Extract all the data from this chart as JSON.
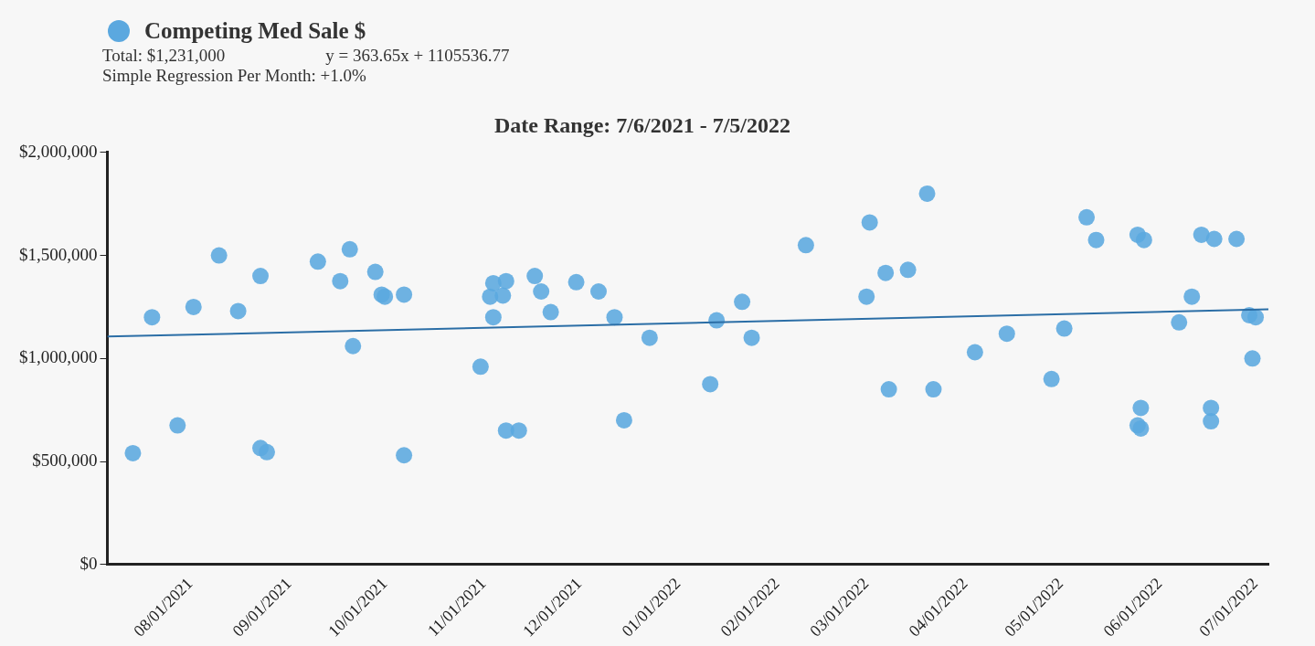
{
  "chart_data": {
    "type": "scatter",
    "title": "Date Range: 7/6/2021 - 7/5/2022",
    "legend": "top left",
    "grid": false,
    "annotations": [
      "Total: $1,231,000",
      "y = 363.65x + 1105536.77",
      "Simple Regression Per Month: +1.0%"
    ],
    "xlim": [
      "2021-07-06",
      "2022-07-05"
    ],
    "xticks": [
      {
        "value": "2021-08-01",
        "label": "08/01/2021"
      },
      {
        "value": "2021-09-01",
        "label": "09/01/2021"
      },
      {
        "value": "2021-10-01",
        "label": "10/01/2021"
      },
      {
        "value": "2021-11-01",
        "label": "11/01/2021"
      },
      {
        "value": "2021-12-01",
        "label": "12/01/2021"
      },
      {
        "value": "2022-01-01",
        "label": "01/01/2022"
      },
      {
        "value": "2022-02-01",
        "label": "02/01/2022"
      },
      {
        "value": "2022-03-01",
        "label": "03/01/2022"
      },
      {
        "value": "2022-04-01",
        "label": "04/01/2022"
      },
      {
        "value": "2022-05-01",
        "label": "05/01/2022"
      },
      {
        "value": "2022-06-01",
        "label": "06/01/2022"
      },
      {
        "value": "2022-07-01",
        "label": "07/01/2022"
      }
    ],
    "ylim": [
      0,
      2000000
    ],
    "yticks": [
      {
        "value": 0,
        "label": "$0"
      },
      {
        "value": 500000,
        "label": "$500,000"
      },
      {
        "value": 1000000,
        "label": "$1,000,000"
      },
      {
        "value": 1500000,
        "label": "$1,500,000"
      },
      {
        "value": 2000000,
        "label": "$2,000,000"
      }
    ],
    "series": [
      {
        "name": "Competing Med Sale $",
        "marker": "circle",
        "color": "#5ba8df",
        "x": [
          "2021-07-14",
          "2021-07-20",
          "2021-07-28",
          "2021-08-02",
          "2021-08-10",
          "2021-08-16",
          "2021-08-23",
          "2021-08-23",
          "2021-08-25",
          "2021-09-10",
          "2021-09-17",
          "2021-09-20",
          "2021-09-21",
          "2021-09-28",
          "2021-09-30",
          "2021-10-01",
          "2021-10-07",
          "2021-10-07",
          "2021-10-31",
          "2021-11-03",
          "2021-11-04",
          "2021-11-04",
          "2021-11-07",
          "2021-11-08",
          "2021-11-08",
          "2021-11-12",
          "2021-11-17",
          "2021-11-19",
          "2021-11-22",
          "2021-11-30",
          "2021-12-07",
          "2021-12-12",
          "2021-12-15",
          "2021-12-23",
          "2022-01-11",
          "2022-01-13",
          "2022-01-21",
          "2022-01-24",
          "2022-02-10",
          "2022-03-01",
          "2022-03-02",
          "2022-03-07",
          "2022-03-08",
          "2022-03-14",
          "2022-03-20",
          "2022-03-22",
          "2022-04-04",
          "2022-04-14",
          "2022-04-28",
          "2022-05-02",
          "2022-05-09",
          "2022-05-12",
          "2022-05-25",
          "2022-05-27",
          "2022-05-26",
          "2022-05-25",
          "2022-05-26",
          "2022-06-07",
          "2022-06-11",
          "2022-06-14",
          "2022-06-18",
          "2022-06-17",
          "2022-06-17",
          "2022-06-25",
          "2022-06-29",
          "2022-07-01",
          "2022-06-30"
        ],
        "values": [
          540000,
          1200000,
          675000,
          1250000,
          1500000,
          1230000,
          1400000,
          565000,
          545000,
          1470000,
          1375000,
          1530000,
          1060000,
          1420000,
          1310000,
          1300000,
          1310000,
          530000,
          960000,
          1300000,
          1365000,
          1200000,
          1305000,
          1375000,
          650000,
          650000,
          1400000,
          1325000,
          1225000,
          1370000,
          1325000,
          1200000,
          700000,
          1100000,
          875000,
          1185000,
          1275000,
          1100000,
          1550000,
          1300000,
          1660000,
          1415000,
          850000,
          1430000,
          1800000,
          850000,
          1030000,
          1120000,
          900000,
          1145000,
          1685000,
          1575000,
          1600000,
          1575000,
          760000,
          675000,
          660000,
          1175000,
          1300000,
          1600000,
          1580000,
          760000,
          695000,
          1580000,
          1210000,
          1200000,
          1000000
        ]
      },
      {
        "type": "line",
        "color": "#2b6ea6",
        "x": [
          "2021-07-06",
          "2022-07-05"
        ],
        "values": [
          1106000,
          1238000
        ]
      }
    ]
  }
}
